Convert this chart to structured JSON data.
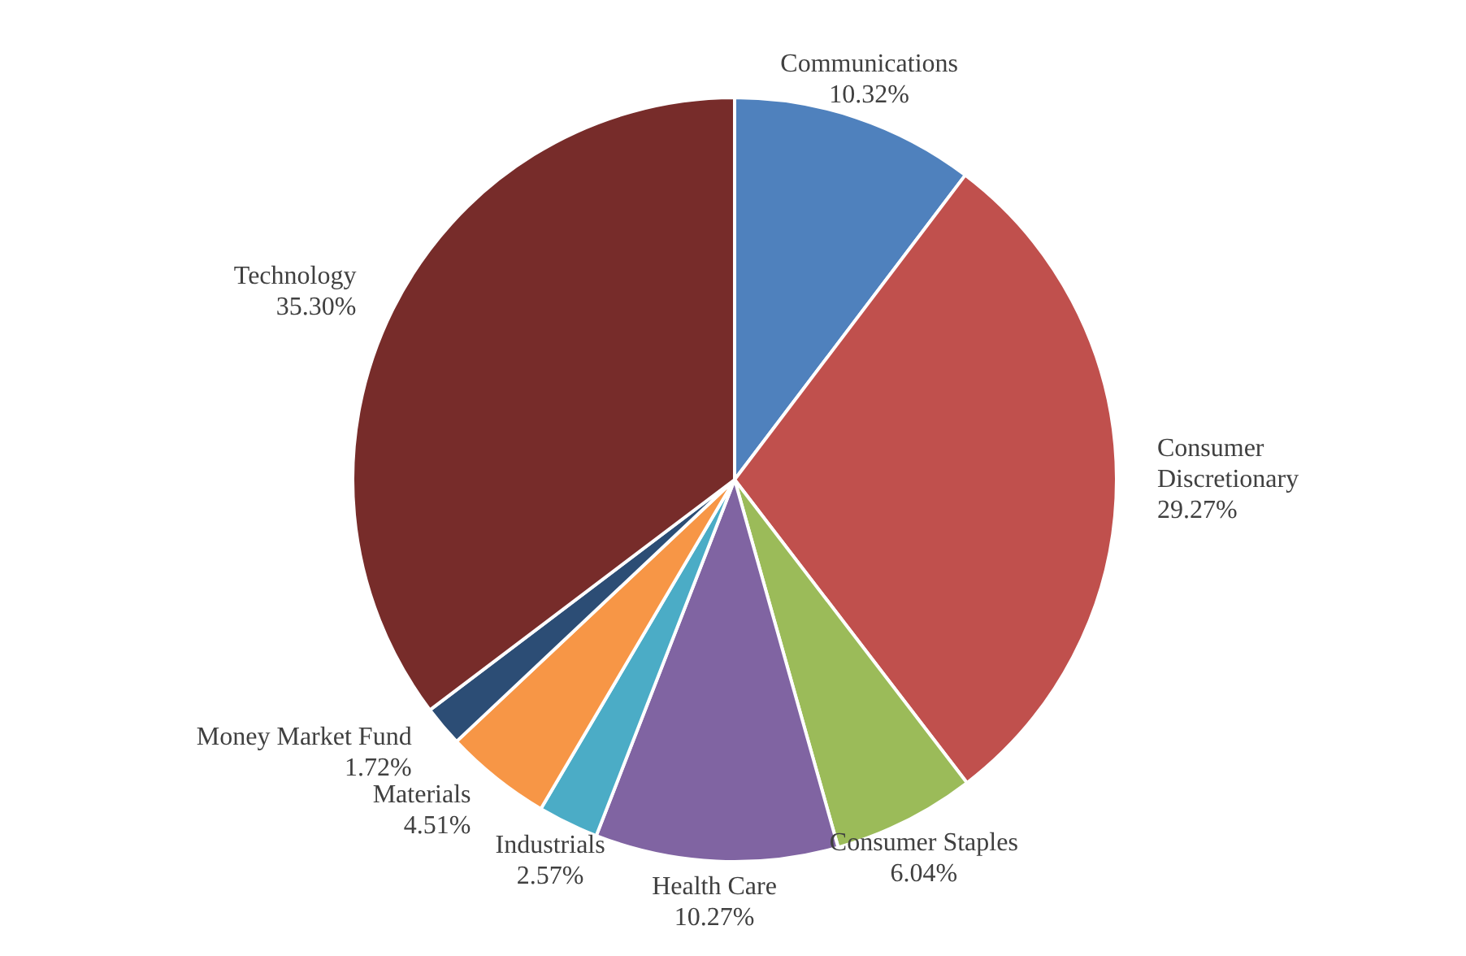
{
  "chart_data": {
    "type": "pie",
    "categories": [
      "Communications",
      "Consumer Discretionary",
      "Consumer Staples",
      "Health Care",
      "Industrials",
      "Materials",
      "Money Market Fund",
      "Technology"
    ],
    "values": [
      10.32,
      29.27,
      6.04,
      10.27,
      2.57,
      4.51,
      1.72,
      35.3
    ],
    "colors": [
      "#4f81bd",
      "#c0504d",
      "#9bbb59",
      "#8064a2",
      "#4bacc6",
      "#f79646",
      "#2c4d75",
      "#772c2a"
    ],
    "value_labels": [
      "10.32%",
      "29.27%",
      "6.04%",
      "10.27%",
      "2.57%",
      "4.51%",
      "1.72%",
      "35.30%"
    ]
  }
}
